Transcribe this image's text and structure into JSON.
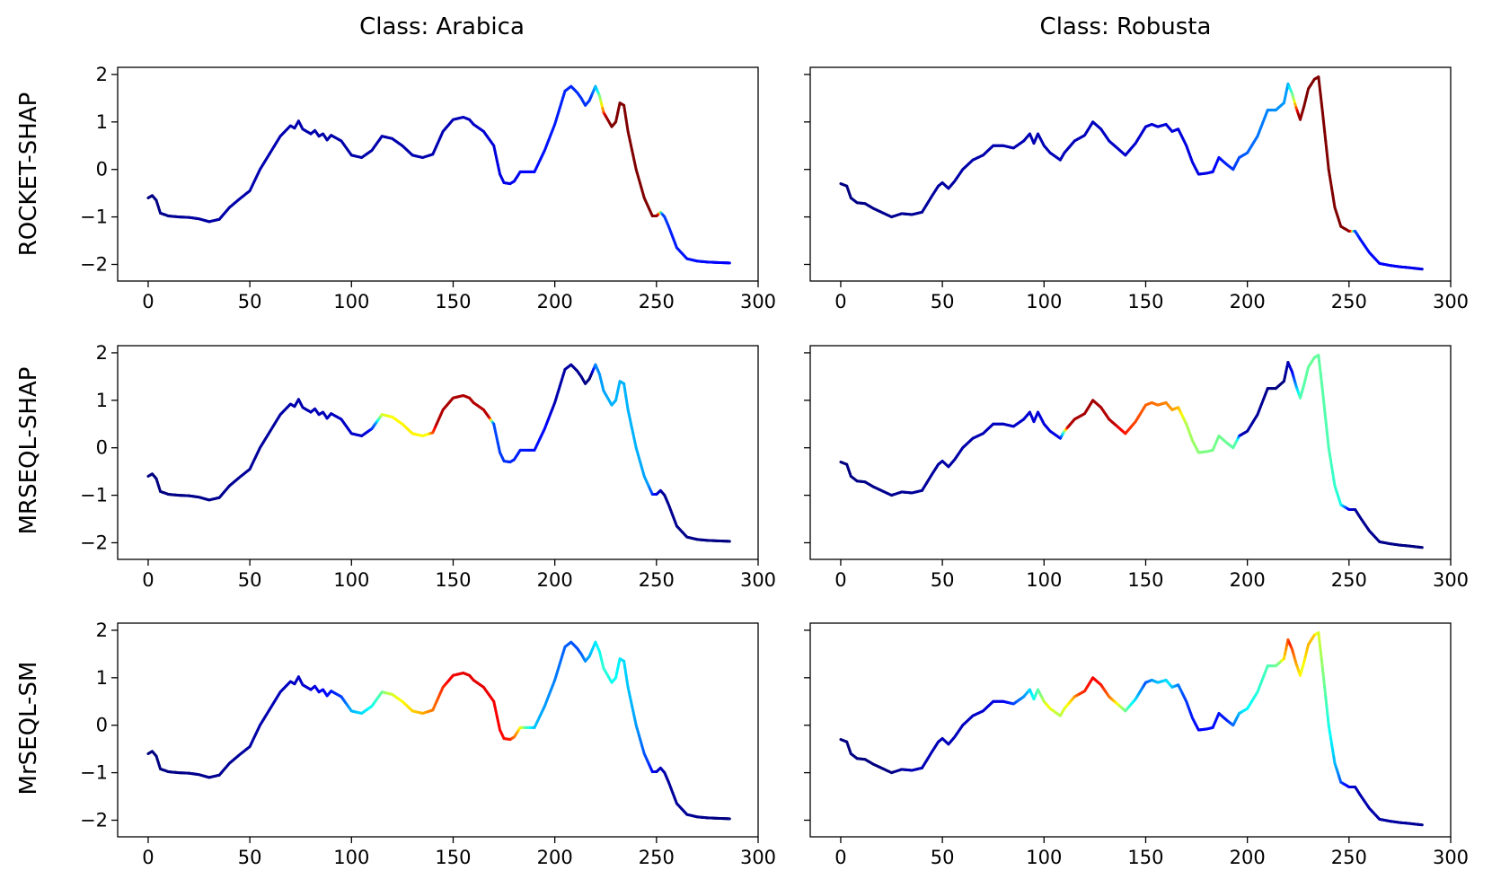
{
  "chart_data": {
    "type": "line",
    "column_titles": [
      "Class: Arabica",
      "Class: Robusta"
    ],
    "row_labels": [
      "ROCKET-SHAP",
      "MRSEQL-SHAP",
      "MrSEQL-SM"
    ],
    "xlim": [
      -15,
      300
    ],
    "ylim": [
      -2.35,
      2.15
    ],
    "xticks": [
      0,
      50,
      100,
      150,
      200,
      250,
      300
    ],
    "yticks": [
      2,
      1,
      0,
      -1,
      -2
    ],
    "xtick_labels": [
      "0",
      "50",
      "100",
      "150",
      "200",
      "250",
      "300"
    ],
    "ytick_labels": [
      "2",
      "1",
      "0",
      "−1",
      "−2"
    ],
    "colormap": "jet",
    "series": {
      "Class: Arabica": {
        "x": [
          0,
          2,
          4,
          6,
          10,
          15,
          20,
          25,
          30,
          35,
          40,
          45,
          50,
          55,
          60,
          65,
          70,
          72,
          74,
          76,
          80,
          82,
          84,
          86,
          88,
          90,
          95,
          100,
          105,
          110,
          115,
          120,
          125,
          130,
          135,
          140,
          145,
          150,
          155,
          158,
          160,
          165,
          170,
          173,
          175,
          178,
          180,
          183,
          186,
          190,
          195,
          200,
          205,
          208,
          211,
          213,
          215,
          217,
          220,
          222,
          224,
          226,
          228,
          230,
          232,
          234,
          236,
          240,
          244,
          248,
          250,
          252,
          254,
          256,
          260,
          265,
          270,
          275,
          280,
          286
        ],
        "y": [
          -0.6,
          -0.55,
          -0.65,
          -0.92,
          -0.98,
          -1.0,
          -1.01,
          -1.04,
          -1.1,
          -1.05,
          -0.8,
          -0.62,
          -0.45,
          0.0,
          0.35,
          0.7,
          0.92,
          0.87,
          1.02,
          0.85,
          0.75,
          0.82,
          0.7,
          0.75,
          0.62,
          0.72,
          0.6,
          0.3,
          0.25,
          0.4,
          0.7,
          0.65,
          0.5,
          0.3,
          0.25,
          0.32,
          0.8,
          1.05,
          1.1,
          1.05,
          0.95,
          0.8,
          0.5,
          -0.1,
          -0.28,
          -0.3,
          -0.25,
          -0.05,
          -0.05,
          -0.05,
          0.4,
          0.95,
          1.65,
          1.75,
          1.62,
          1.5,
          1.35,
          1.45,
          1.75,
          1.55,
          1.2,
          1.05,
          0.9,
          1.0,
          1.4,
          1.35,
          0.8,
          0.0,
          -0.6,
          -0.98,
          -0.98,
          -0.9,
          -1.0,
          -1.2,
          -1.65,
          -1.88,
          -1.93,
          -1.95,
          -1.96,
          -1.97
        ],
        "attributions": {
          "ROCKET-SHAP": [
            [
              0,
              0.0
            ],
            [
              20,
              0.03
            ],
            [
              60,
              0.05
            ],
            [
              90,
              0.04
            ],
            [
              150,
              0.05
            ],
            [
              200,
              0.15
            ],
            [
              218,
              0.18
            ],
            [
              221,
              0.35
            ],
            [
              223,
              0.6
            ],
            [
              225,
              0.95
            ],
            [
              228,
              1.0
            ],
            [
              248,
              1.0
            ],
            [
              251,
              0.97
            ],
            [
              253,
              0.2
            ],
            [
              258,
              0.15
            ],
            [
              286,
              0.12
            ]
          ],
          "MRSEQL-SHAP": [
            [
              0,
              0.0
            ],
            [
              60,
              0.03
            ],
            [
              108,
              0.08
            ],
            [
              112,
              0.25
            ],
            [
              115,
              0.58
            ],
            [
              120,
              0.62
            ],
            [
              128,
              0.64
            ],
            [
              138,
              0.62
            ],
            [
              142,
              0.95
            ],
            [
              150,
              0.96
            ],
            [
              168,
              0.94
            ],
            [
              170,
              0.2
            ],
            [
              178,
              0.16
            ],
            [
              196,
              0.13
            ],
            [
              200,
              0.05
            ],
            [
              218,
              0.0
            ],
            [
              220,
              0.25
            ],
            [
              223,
              0.28
            ],
            [
              228,
              0.3
            ],
            [
              240,
              0.3
            ],
            [
              246,
              0.28
            ],
            [
              250,
              0.1
            ],
            [
              254,
              0.02
            ],
            [
              286,
              0.0
            ]
          ],
          "MrSEQL-SM": [
            [
              0,
              0.0
            ],
            [
              40,
              0.02
            ],
            [
              80,
              0.08
            ],
            [
              95,
              0.18
            ],
            [
              100,
              0.3
            ],
            [
              108,
              0.36
            ],
            [
              114,
              0.45
            ],
            [
              118,
              0.55
            ],
            [
              122,
              0.6
            ],
            [
              128,
              0.65
            ],
            [
              135,
              0.7
            ],
            [
              142,
              0.78
            ],
            [
              148,
              0.88
            ],
            [
              156,
              0.9
            ],
            [
              165,
              0.9
            ],
            [
              172,
              0.88
            ],
            [
              178,
              0.85
            ],
            [
              182,
              0.7
            ],
            [
              186,
              0.45
            ],
            [
              190,
              0.32
            ],
            [
              195,
              0.28
            ],
            [
              205,
              0.22
            ],
            [
              212,
              0.2
            ],
            [
              220,
              0.35
            ],
            [
              224,
              0.42
            ],
            [
              230,
              0.38
            ],
            [
              240,
              0.28
            ],
            [
              246,
              0.18
            ],
            [
              250,
              0.08
            ],
            [
              256,
              0.03
            ],
            [
              286,
              0.0
            ]
          ]
        }
      },
      "Class: Robusta": {
        "x": [
          0,
          3,
          5,
          8,
          12,
          16,
          20,
          25,
          30,
          35,
          40,
          45,
          48,
          50,
          53,
          56,
          60,
          65,
          70,
          75,
          80,
          85,
          90,
          93,
          95,
          97,
          100,
          103,
          108,
          110,
          115,
          120,
          124,
          128,
          132,
          136,
          140,
          145,
          150,
          153,
          156,
          160,
          163,
          166,
          170,
          173,
          176,
          180,
          183,
          186,
          190,
          193,
          196,
          200,
          205,
          210,
          214,
          218,
          220,
          222,
          224,
          226,
          228,
          230,
          233,
          235,
          237,
          240,
          243,
          246,
          250,
          253,
          256,
          260,
          265,
          270,
          275,
          280,
          286
        ],
        "y": [
          -0.3,
          -0.35,
          -0.6,
          -0.7,
          -0.72,
          -0.82,
          -0.9,
          -1.0,
          -0.93,
          -0.95,
          -0.9,
          -0.55,
          -0.35,
          -0.28,
          -0.4,
          -0.25,
          0.0,
          0.2,
          0.3,
          0.5,
          0.5,
          0.45,
          0.6,
          0.75,
          0.55,
          0.75,
          0.5,
          0.35,
          0.2,
          0.35,
          0.6,
          0.72,
          1.0,
          0.85,
          0.6,
          0.45,
          0.3,
          0.55,
          0.9,
          0.95,
          0.9,
          0.95,
          0.8,
          0.85,
          0.5,
          0.15,
          -0.1,
          -0.08,
          -0.05,
          0.25,
          0.1,
          0.0,
          0.25,
          0.35,
          0.7,
          1.25,
          1.25,
          1.4,
          1.8,
          1.6,
          1.3,
          1.05,
          1.35,
          1.7,
          1.9,
          1.95,
          1.2,
          0.0,
          -0.8,
          -1.2,
          -1.3,
          -1.3,
          -1.5,
          -1.75,
          -1.98,
          -2.02,
          -2.05,
          -2.07,
          -2.1
        ],
        "attributions": {
          "ROCKET-SHAP": [
            [
              0,
              0.0
            ],
            [
              60,
              0.04
            ],
            [
              120,
              0.06
            ],
            [
              180,
              0.1
            ],
            [
              200,
              0.22
            ],
            [
              212,
              0.26
            ],
            [
              220,
              0.28
            ],
            [
              223,
              0.55
            ],
            [
              225,
              0.96
            ],
            [
              228,
              1.0
            ],
            [
              249,
              1.0
            ],
            [
              251,
              0.96
            ],
            [
              253,
              0.2
            ],
            [
              256,
              0.14
            ],
            [
              286,
              0.1
            ]
          ],
          "MRSEQL-SHAP": [
            [
              0,
              0.0
            ],
            [
              60,
              0.04
            ],
            [
              108,
              0.1
            ],
            [
              110,
              0.45
            ],
            [
              112,
              0.95
            ],
            [
              123,
              0.97
            ],
            [
              135,
              0.94
            ],
            [
              138,
              0.88
            ],
            [
              143,
              0.82
            ],
            [
              150,
              0.78
            ],
            [
              160,
              0.75
            ],
            [
              166,
              0.7
            ],
            [
              170,
              0.55
            ],
            [
              178,
              0.5
            ],
            [
              190,
              0.48
            ],
            [
              195,
              0.45
            ],
            [
              197,
              0.05
            ],
            [
              214,
              0.0
            ],
            [
              218,
              0.0
            ],
            [
              222,
              0.1
            ],
            [
              226,
              0.45
            ],
            [
              232,
              0.48
            ],
            [
              240,
              0.45
            ],
            [
              246,
              0.4
            ],
            [
              250,
              0.12
            ],
            [
              254,
              0.02
            ],
            [
              286,
              0.0
            ]
          ],
          "MrSEQL-SM": [
            [
              0,
              0.0
            ],
            [
              25,
              0.0
            ],
            [
              35,
              0.05
            ],
            [
              60,
              0.06
            ],
            [
              80,
              0.1
            ],
            [
              92,
              0.3
            ],
            [
              97,
              0.45
            ],
            [
              102,
              0.62
            ],
            [
              108,
              0.55
            ],
            [
              113,
              0.65
            ],
            [
              118,
              0.82
            ],
            [
              124,
              0.88
            ],
            [
              128,
              0.86
            ],
            [
              133,
              0.75
            ],
            [
              138,
              0.55
            ],
            [
              143,
              0.4
            ],
            [
              150,
              0.2
            ],
            [
              155,
              0.3
            ],
            [
              162,
              0.35
            ],
            [
              166,
              0.25
            ],
            [
              170,
              0.18
            ],
            [
              176,
              0.12
            ],
            [
              190,
              0.15
            ],
            [
              198,
              0.35
            ],
            [
              206,
              0.42
            ],
            [
              212,
              0.46
            ],
            [
              216,
              0.5
            ],
            [
              219,
              0.72
            ],
            [
              221,
              0.85
            ],
            [
              224,
              0.72
            ],
            [
              227,
              0.6
            ],
            [
              230,
              0.7
            ],
            [
              233,
              0.68
            ],
            [
              236,
              0.55
            ],
            [
              240,
              0.4
            ],
            [
              244,
              0.28
            ],
            [
              248,
              0.15
            ],
            [
              254,
              0.05
            ],
            [
              286,
              0.02
            ]
          ]
        }
      }
    }
  }
}
